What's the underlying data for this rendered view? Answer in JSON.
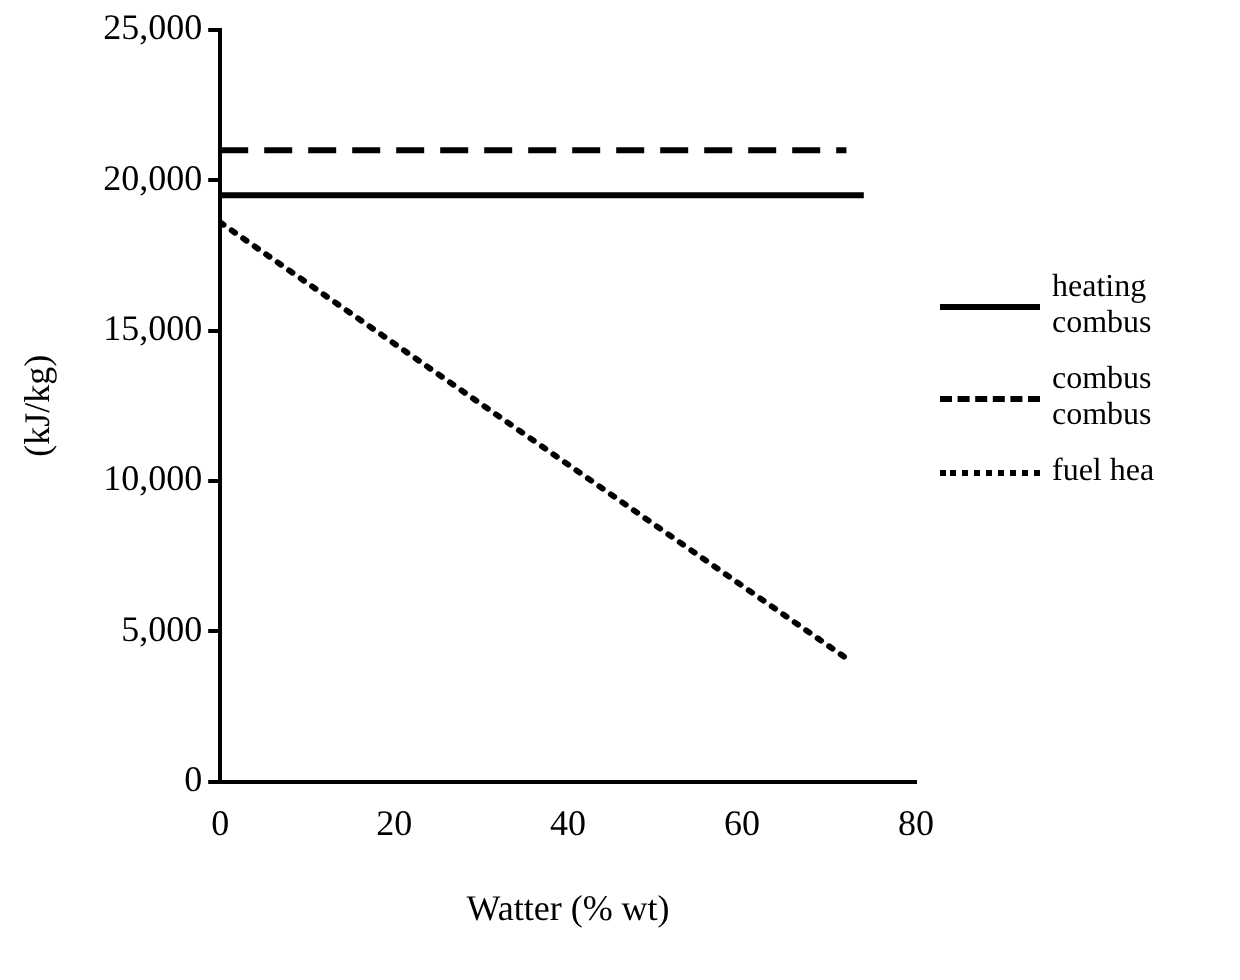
{
  "chart_data": {
    "type": "line",
    "xlabel": "Watter (% wt)",
    "ylabel": "(kJ/kg)",
    "xlim": [
      0,
      80
    ],
    "xticks": [
      0,
      20,
      40,
      60,
      80
    ],
    "ylim": [
      0,
      25000
    ],
    "yticks": [
      {
        "value": 0,
        "label": "0"
      },
      {
        "value": 5000,
        "label": "5,000"
      },
      {
        "value": 10000,
        "label": "10,000"
      },
      {
        "value": 15000,
        "label": "15,000"
      },
      {
        "value": 20000,
        "label": "20,000"
      },
      {
        "value": 25000,
        "label": "25,000"
      }
    ],
    "grid": false,
    "legend": "right",
    "marker": "none",
    "series": [
      {
        "name": "heating combus",
        "color": "#000000",
        "line_style": "solid",
        "x": [
          0,
          74
        ],
        "values": [
          19500,
          19500
        ]
      },
      {
        "name": "combus combus",
        "color": "#000000",
        "line_style": "dashed",
        "x": [
          0,
          72
        ],
        "values": [
          21000,
          21000
        ]
      },
      {
        "name": "fuel hea",
        "color": "#000000",
        "line_style": "dotted",
        "x": [
          0,
          72
        ],
        "values": [
          18600,
          4100
        ]
      }
    ]
  }
}
